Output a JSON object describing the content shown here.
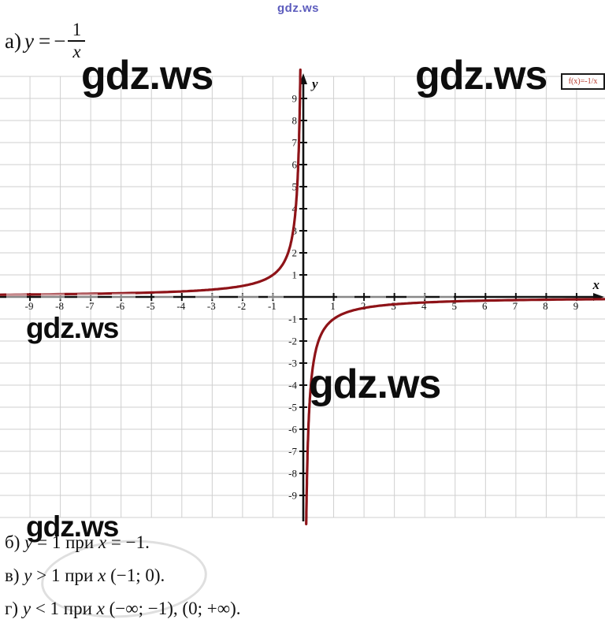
{
  "watermark": {
    "text": "gdz.ws"
  },
  "header_formula": {
    "label": "а)",
    "variable": "y",
    "equals": "=",
    "minus": "−",
    "numerator": "1",
    "denominator": "x"
  },
  "chart_data": {
    "type": "line",
    "title": "",
    "xlabel": "x",
    "ylabel": "y",
    "xlim": [
      -10,
      10
    ],
    "ylim": [
      -10.1,
      10.1
    ],
    "grid": true,
    "grid_step": 1,
    "xticks": [
      -9,
      -8,
      -7,
      -6,
      -5,
      -4,
      -3,
      -2,
      -1,
      1,
      2,
      3,
      4,
      5,
      6,
      7,
      8,
      9
    ],
    "yticks": [
      -9,
      -8,
      -7,
      -6,
      -5,
      -4,
      -3,
      -2,
      -1,
      1,
      2,
      3,
      4,
      5,
      6,
      7,
      8,
      9
    ],
    "legend": {
      "label": "f(x)=-1/x",
      "position": "top-right"
    },
    "axis_color": "#111111",
    "grid_color": "#cfcfcf",
    "series": [
      {
        "name": "f(x)=-1/x",
        "expression": "-1/x",
        "color": "#8e1318",
        "branches": [
          [
            -10,
            -0.0971
          ],
          [
            0.0971,
            10
          ]
        ]
      }
    ]
  },
  "solution_lines": [
    {
      "parts": [
        {
          "t": "б) "
        },
        {
          "t": "y",
          "i": true
        },
        {
          "t": " = 1 при "
        },
        {
          "t": "x",
          "i": true
        },
        {
          "t": " = −1."
        }
      ]
    },
    {
      "parts": [
        {
          "t": "в) "
        },
        {
          "t": "y",
          "i": true
        },
        {
          "t": " > 1 при "
        },
        {
          "t": "x",
          "i": true
        },
        {
          "t": " (−1; 0)."
        }
      ]
    },
    {
      "parts": [
        {
          "t": "г) "
        },
        {
          "t": "y",
          "i": true
        },
        {
          "t": " < 1 при "
        },
        {
          "t": "x",
          "i": true
        },
        {
          "t": " (−∞; −1), (0; +∞)."
        }
      ]
    }
  ]
}
